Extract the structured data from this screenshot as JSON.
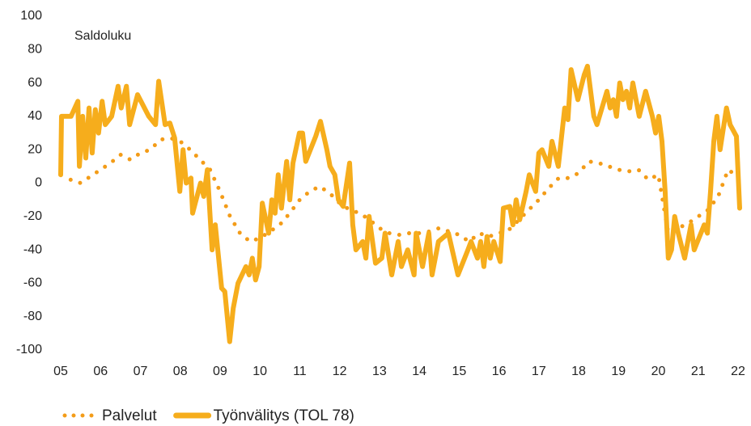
{
  "chart_data": {
    "type": "line",
    "annotation": "Saldoluku",
    "xlim": [
      2005,
      2022
    ],
    "xticks": [
      {
        "value": 2005,
        "label": "05"
      },
      {
        "value": 2006,
        "label": "06"
      },
      {
        "value": 2007,
        "label": "07"
      },
      {
        "value": 2008,
        "label": "08"
      },
      {
        "value": 2009,
        "label": "09"
      },
      {
        "value": 2010,
        "label": "10"
      },
      {
        "value": 2011,
        "label": "11"
      },
      {
        "value": 2012,
        "label": "12"
      },
      {
        "value": 2013,
        "label": "13"
      },
      {
        "value": 2014,
        "label": "14"
      },
      {
        "value": 2015,
        "label": "15"
      },
      {
        "value": 2016,
        "label": "16"
      },
      {
        "value": 2017,
        "label": "17"
      },
      {
        "value": 2018,
        "label": "18"
      },
      {
        "value": 2019,
        "label": "19"
      },
      {
        "value": 2020,
        "label": "20"
      },
      {
        "value": 2021,
        "label": "21"
      },
      {
        "value": 2022,
        "label": "22"
      }
    ],
    "ylim": [
      -100,
      100
    ],
    "yticks": [
      -100,
      -80,
      -60,
      -40,
      -20,
      0,
      20,
      40,
      60,
      80,
      100
    ],
    "grid": false,
    "legend": "bottom",
    "series": [
      {
        "name": "Palvelut",
        "color": "#f39c18",
        "style": "dotted",
        "x": [
          2005.25,
          2005.5,
          2005.75,
          2006.0,
          2006.25,
          2006.5,
          2006.75,
          2007.0,
          2007.25,
          2007.5,
          2007.75,
          2008.0,
          2008.25,
          2008.5,
          2008.75,
          2009.0,
          2009.25,
          2009.5,
          2009.75,
          2010.0,
          2010.25,
          2010.5,
          2010.75,
          2011.0,
          2011.25,
          2011.5,
          2011.75,
          2012.0,
          2012.25,
          2012.5,
          2012.75,
          2013.0,
          2013.25,
          2013.5,
          2013.75,
          2014.0,
          2014.25,
          2014.5,
          2014.75,
          2015.0,
          2015.25,
          2015.5,
          2015.75,
          2016.0,
          2016.25,
          2016.5,
          2016.75,
          2017.0,
          2017.25,
          2017.5,
          2017.75,
          2018.0,
          2018.25,
          2018.5,
          2018.75,
          2019.0,
          2019.25,
          2019.5,
          2019.75,
          2020.0,
          2020.25,
          2020.5,
          2020.75,
          2021.0,
          2021.25,
          2021.5,
          2021.75,
          2022.0
        ],
        "values": [
          2,
          0,
          4,
          8,
          12,
          17,
          14,
          18,
          20,
          26,
          27,
          25,
          20,
          14,
          8,
          -5,
          -20,
          -30,
          -35,
          -33,
          -29,
          -25,
          -18,
          -10,
          -5,
          -2,
          -6,
          -12,
          -16,
          -18,
          -22,
          -27,
          -30,
          -31,
          -30,
          -30,
          -29,
          -27,
          -29,
          -31,
          -35,
          -30,
          -32,
          -30,
          -28,
          -22,
          -16,
          -10,
          -3,
          3,
          3,
          6,
          13,
          12,
          10,
          8,
          7,
          8,
          2,
          5,
          -30,
          -27,
          -24,
          -20,
          -16,
          -8,
          8,
          4
        ]
      },
      {
        "name": "Työnvälitys (TOL 78)",
        "color": "#f6ad1c",
        "style": "solid",
        "x": [
          2005.0,
          2005.02,
          2005.26,
          2005.43,
          2005.47,
          2005.55,
          2005.63,
          2005.71,
          2005.79,
          2005.87,
          2005.95,
          2006.04,
          2006.12,
          2006.28,
          2006.44,
          2006.52,
          2006.65,
          2006.73,
          2006.93,
          2007.21,
          2007.38,
          2007.46,
          2007.62,
          2007.74,
          2007.86,
          2007.99,
          2008.07,
          2008.15,
          2008.27,
          2008.31,
          2008.51,
          2008.59,
          2008.68,
          2008.8,
          2008.88,
          2009.04,
          2009.12,
          2009.24,
          2009.33,
          2009.45,
          2009.65,
          2009.73,
          2009.81,
          2009.89,
          2009.98,
          2010.06,
          2010.22,
          2010.3,
          2010.38,
          2010.46,
          2010.54,
          2010.67,
          2010.75,
          2010.83,
          2010.99,
          2011.07,
          2011.15,
          2011.4,
          2011.52,
          2011.68,
          2011.76,
          2011.88,
          2011.97,
          2012.09,
          2012.25,
          2012.33,
          2012.41,
          2012.58,
          2012.66,
          2012.74,
          2012.9,
          2013.06,
          2013.14,
          2013.31,
          2013.47,
          2013.55,
          2013.71,
          2013.87,
          2013.92,
          2014.08,
          2014.24,
          2014.32,
          2014.48,
          2014.73,
          2014.97,
          2015.22,
          2015.3,
          2015.46,
          2015.54,
          2015.62,
          2015.7,
          2015.78,
          2015.87,
          2016.03,
          2016.11,
          2016.27,
          2016.35,
          2016.43,
          2016.52,
          2016.68,
          2016.76,
          2016.92,
          2017.0,
          2017.08,
          2017.25,
          2017.33,
          2017.49,
          2017.65,
          2017.73,
          2017.81,
          2017.98,
          2018.14,
          2018.22,
          2018.38,
          2018.46,
          2018.71,
          2018.79,
          2018.87,
          2018.95,
          2019.03,
          2019.11,
          2019.2,
          2019.28,
          2019.36,
          2019.52,
          2019.68,
          2019.85,
          2019.93,
          2020.01,
          2020.09,
          2020.17,
          2020.25,
          2020.33,
          2020.41,
          2020.5,
          2020.66,
          2020.82,
          2020.9,
          2021.15,
          2021.23,
          2021.31,
          2021.39,
          2021.47,
          2021.55,
          2021.71,
          2021.8,
          2021.96,
          2022.04
        ],
        "values": [
          5,
          40,
          40,
          49,
          10,
          40,
          15,
          45,
          18,
          44,
          30,
          49,
          35,
          40,
          58,
          45,
          58,
          35,
          53,
          40,
          35,
          61,
          35,
          36,
          27,
          -5,
          20,
          0,
          3,
          -18,
          0,
          -8,
          8,
          -40,
          -25,
          -63,
          -65,
          -95,
          -75,
          -60,
          -50,
          -55,
          -45,
          -58,
          -50,
          -12,
          -30,
          -10,
          -18,
          5,
          -15,
          13,
          -10,
          12,
          30,
          30,
          13,
          28,
          37,
          20,
          10,
          5,
          -10,
          -14,
          12,
          -25,
          -40,
          -35,
          -45,
          -20,
          -48,
          -45,
          -30,
          -55,
          -35,
          -50,
          -40,
          -55,
          -30,
          -50,
          -30,
          -55,
          -35,
          -30,
          -55,
          -40,
          -35,
          -45,
          -35,
          -50,
          -32,
          -45,
          -35,
          -47,
          -15,
          -14,
          -25,
          -10,
          -22,
          -5,
          5,
          -5,
          18,
          20,
          10,
          25,
          10,
          45,
          38,
          68,
          50,
          65,
          70,
          40,
          35,
          55,
          45,
          50,
          40,
          60,
          50,
          55,
          45,
          60,
          40,
          55,
          40,
          30,
          40,
          25,
          -5,
          -45,
          -40,
          -20,
          -30,
          -45,
          -25,
          -40,
          -25,
          -30,
          -5,
          25,
          40,
          20,
          45,
          35,
          28,
          -15
        ]
      }
    ]
  }
}
